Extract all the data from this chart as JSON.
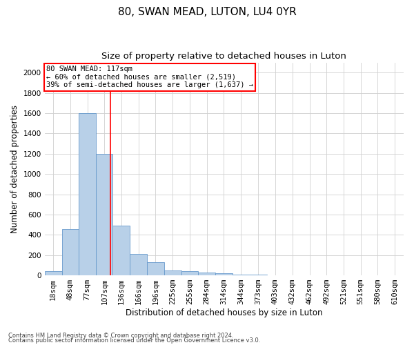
{
  "title": "80, SWAN MEAD, LUTON, LU4 0YR",
  "subtitle": "Size of property relative to detached houses in Luton",
  "xlabel": "Distribution of detached houses by size in Luton",
  "ylabel": "Number of detached properties",
  "footer_line1": "Contains HM Land Registry data © Crown copyright and database right 2024.",
  "footer_line2": "Contains public sector information licensed under the Open Government Licence v3.0.",
  "bar_color": "#b8d0e8",
  "bar_edge_color": "#6699cc",
  "annotation_box_text": "80 SWAN MEAD: 117sqm\n← 60% of detached houses are smaller (2,519)\n39% of semi-detached houses are larger (1,637) →",
  "vline_color": "#ff0000",
  "vline_x": 117,
  "categories": [
    "18sqm",
    "48sqm",
    "77sqm",
    "107sqm",
    "136sqm",
    "166sqm",
    "196sqm",
    "225sqm",
    "255sqm",
    "284sqm",
    "314sqm",
    "344sqm",
    "373sqm",
    "403sqm",
    "432sqm",
    "462sqm",
    "492sqm",
    "521sqm",
    "551sqm",
    "580sqm",
    "610sqm"
  ],
  "bin_edges": [
    3,
    33,
    62,
    92,
    121,
    151,
    180,
    210,
    240,
    269,
    299,
    328,
    358,
    388,
    417,
    447,
    477,
    506,
    536,
    565,
    595,
    625
  ],
  "values": [
    40,
    460,
    1600,
    1200,
    490,
    210,
    130,
    50,
    40,
    25,
    20,
    10,
    5,
    2,
    1,
    1,
    0,
    0,
    0,
    0,
    0
  ],
  "ylim": [
    0,
    2100
  ],
  "yticks": [
    0,
    200,
    400,
    600,
    800,
    1000,
    1200,
    1400,
    1600,
    1800,
    2000
  ],
  "background_color": "#ffffff",
  "grid_color": "#d0d0d0",
  "title_fontsize": 11,
  "subtitle_fontsize": 9.5,
  "axis_label_fontsize": 8.5,
  "tick_fontsize": 7.5,
  "footer_fontsize": 6.0,
  "annot_fontsize": 7.5
}
